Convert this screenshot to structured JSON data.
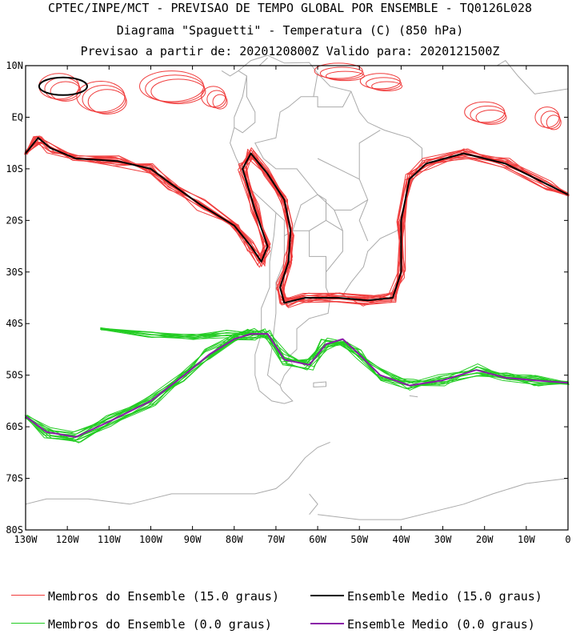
{
  "title": {
    "line1": "CPTEC/INPE/MCT - PREVISAO DE TEMPO GLOBAL POR ENSEMBLE - TQ0126L028",
    "line2": "Diagrama \"Spaguetti\" - Temperatura (C) (850 hPa)",
    "line3": "Previsao a partir de: 2020120800Z  Valido para: 2020121500Z"
  },
  "map": {
    "lon_range": [
      -130,
      0
    ],
    "lat_range": [
      -80,
      10
    ],
    "lon_ticks": [
      "130W",
      "120W",
      "110W",
      "100W",
      "90W",
      "80W",
      "70W",
      "60W",
      "50W",
      "40W",
      "30W",
      "20W",
      "10W",
      "0"
    ],
    "lat_ticks": [
      "10N",
      "EQ",
      "10S",
      "20S",
      "30S",
      "40S",
      "50S",
      "60S",
      "70S",
      "80S"
    ]
  },
  "colors": {
    "member_15": "#f03c3c",
    "mean_15": "#000000",
    "member_0": "#22cc22",
    "mean_0": "#8a1aa8",
    "coast": "#aaaaaa"
  },
  "legend": {
    "member_15": "Membros do Ensemble (15.0 graus)",
    "mean_15": "Ensemble Medio (15.0 graus)",
    "member_0": "Membros do Ensemble (0.0 graus)",
    "mean_0": "Ensemble Medio (0.0 graus)"
  }
}
